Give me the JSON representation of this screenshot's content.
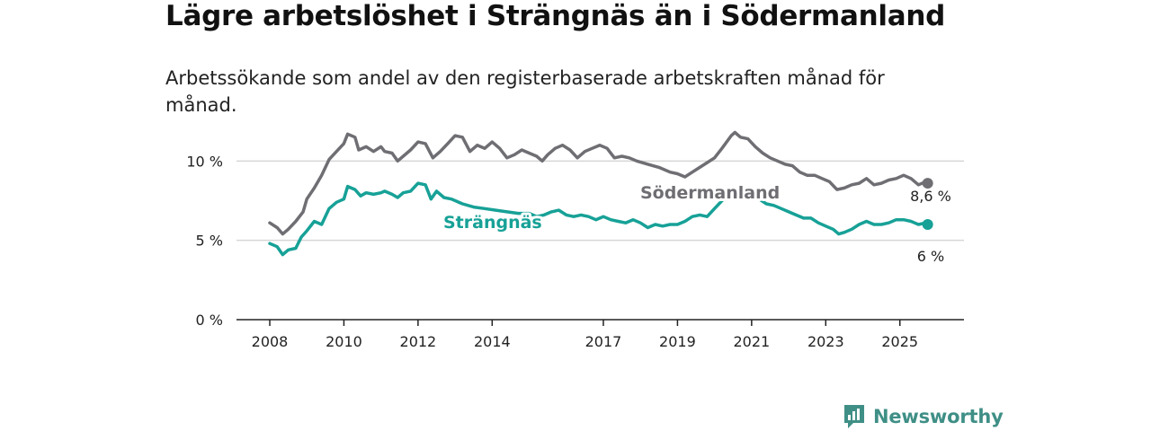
{
  "header": {
    "title": "Lägre arbetslöshet i Strängnäs än i Södermanland",
    "subtitle": "Arbetssökande som andel av den registerbaserade arbetskraften månad för månad."
  },
  "brand": {
    "name": "Newsworthy",
    "icon": "newsworthy-logo-icon",
    "color": "#3f8f86"
  },
  "chart_data": {
    "type": "line",
    "title": "Lägre arbetslöshet i Strängnäs än i Södermanland",
    "subtitle": "Arbetssökande som andel av den registerbaserade arbetskraften månad för månad.",
    "xlabel": "",
    "ylabel": "",
    "xlim": [
      2008,
      2026
    ],
    "ylim": [
      0,
      12
    ],
    "grid": true,
    "x_ticks": [
      {
        "value": 2008,
        "label": "2008"
      },
      {
        "value": 2010,
        "label": "2010"
      },
      {
        "value": 2012,
        "label": "2012"
      },
      {
        "value": 2014,
        "label": "2014"
      },
      {
        "value": 2017,
        "label": "2017"
      },
      {
        "value": 2019,
        "label": "2019"
      },
      {
        "value": 2021,
        "label": "2021"
      },
      {
        "value": 2023,
        "label": "2023"
      },
      {
        "value": 2025,
        "label": "2025"
      }
    ],
    "y_ticks": [
      {
        "value": 0,
        "label": "0 %"
      },
      {
        "value": 5,
        "label": "5 %"
      },
      {
        "value": 10,
        "label": "10 %"
      }
    ],
    "series": [
      {
        "name": "Södermanland",
        "color": "#6f6e73",
        "end_label": "8,6 %",
        "points": [
          [
            2008.0,
            6.1
          ],
          [
            2008.2,
            5.8
          ],
          [
            2008.35,
            5.4
          ],
          [
            2008.5,
            5.7
          ],
          [
            2008.7,
            6.2
          ],
          [
            2008.9,
            6.8
          ],
          [
            2009.0,
            7.6
          ],
          [
            2009.2,
            8.3
          ],
          [
            2009.4,
            9.1
          ],
          [
            2009.6,
            10.1
          ],
          [
            2009.8,
            10.6
          ],
          [
            2010.0,
            11.1
          ],
          [
            2010.1,
            11.7
          ],
          [
            2010.3,
            11.5
          ],
          [
            2010.4,
            10.7
          ],
          [
            2010.6,
            10.9
          ],
          [
            2010.8,
            10.6
          ],
          [
            2011.0,
            10.9
          ],
          [
            2011.1,
            10.6
          ],
          [
            2011.3,
            10.5
          ],
          [
            2011.45,
            10.0
          ],
          [
            2011.6,
            10.3
          ],
          [
            2011.8,
            10.7
          ],
          [
            2012.0,
            11.2
          ],
          [
            2012.2,
            11.1
          ],
          [
            2012.4,
            10.2
          ],
          [
            2012.6,
            10.6
          ],
          [
            2012.8,
            11.1
          ],
          [
            2013.0,
            11.6
          ],
          [
            2013.2,
            11.5
          ],
          [
            2013.4,
            10.6
          ],
          [
            2013.6,
            11.0
          ],
          [
            2013.8,
            10.8
          ],
          [
            2014.0,
            11.2
          ],
          [
            2014.2,
            10.8
          ],
          [
            2014.4,
            10.2
          ],
          [
            2014.6,
            10.4
          ],
          [
            2014.8,
            10.7
          ],
          [
            2015.0,
            10.5
          ],
          [
            2015.2,
            10.3
          ],
          [
            2015.35,
            10.0
          ],
          [
            2015.5,
            10.4
          ],
          [
            2015.7,
            10.8
          ],
          [
            2015.9,
            11.0
          ],
          [
            2016.1,
            10.7
          ],
          [
            2016.3,
            10.2
          ],
          [
            2016.5,
            10.6
          ],
          [
            2016.7,
            10.8
          ],
          [
            2016.9,
            11.0
          ],
          [
            2017.1,
            10.8
          ],
          [
            2017.3,
            10.2
          ],
          [
            2017.5,
            10.3
          ],
          [
            2017.7,
            10.2
          ],
          [
            2017.9,
            10.0
          ],
          [
            2018.2,
            9.8
          ],
          [
            2018.5,
            9.6
          ],
          [
            2018.8,
            9.3
          ],
          [
            2019.0,
            9.2
          ],
          [
            2019.2,
            9.0
          ],
          [
            2019.4,
            9.3
          ],
          [
            2019.6,
            9.6
          ],
          [
            2019.8,
            9.9
          ],
          [
            2020.0,
            10.2
          ],
          [
            2020.2,
            10.8
          ],
          [
            2020.45,
            11.6
          ],
          [
            2020.55,
            11.8
          ],
          [
            2020.7,
            11.5
          ],
          [
            2020.9,
            11.4
          ],
          [
            2021.1,
            10.9
          ],
          [
            2021.3,
            10.5
          ],
          [
            2021.5,
            10.2
          ],
          [
            2021.7,
            10.0
          ],
          [
            2021.9,
            9.8
          ],
          [
            2022.1,
            9.7
          ],
          [
            2022.3,
            9.3
          ],
          [
            2022.5,
            9.1
          ],
          [
            2022.7,
            9.1
          ],
          [
            2022.9,
            8.9
          ],
          [
            2023.1,
            8.7
          ],
          [
            2023.3,
            8.2
          ],
          [
            2023.5,
            8.3
          ],
          [
            2023.7,
            8.5
          ],
          [
            2023.9,
            8.6
          ],
          [
            2024.1,
            8.9
          ],
          [
            2024.3,
            8.5
          ],
          [
            2024.5,
            8.6
          ],
          [
            2024.7,
            8.8
          ],
          [
            2024.9,
            8.9
          ],
          [
            2025.1,
            9.1
          ],
          [
            2025.3,
            8.9
          ],
          [
            2025.5,
            8.5
          ],
          [
            2025.7,
            8.7
          ],
          [
            2025.75,
            8.6
          ]
        ]
      },
      {
        "name": "Strängnäs",
        "color": "#17a197",
        "end_label": "6 %",
        "points": [
          [
            2008.0,
            4.8
          ],
          [
            2008.2,
            4.6
          ],
          [
            2008.35,
            4.1
          ],
          [
            2008.5,
            4.4
          ],
          [
            2008.7,
            4.5
          ],
          [
            2008.85,
            5.2
          ],
          [
            2009.0,
            5.6
          ],
          [
            2009.2,
            6.2
          ],
          [
            2009.4,
            6.0
          ],
          [
            2009.6,
            7.0
          ],
          [
            2009.8,
            7.4
          ],
          [
            2010.0,
            7.6
          ],
          [
            2010.1,
            8.4
          ],
          [
            2010.3,
            8.2
          ],
          [
            2010.45,
            7.8
          ],
          [
            2010.6,
            8.0
          ],
          [
            2010.8,
            7.9
          ],
          [
            2011.0,
            8.0
          ],
          [
            2011.1,
            8.1
          ],
          [
            2011.3,
            7.9
          ],
          [
            2011.45,
            7.7
          ],
          [
            2011.6,
            8.0
          ],
          [
            2011.8,
            8.1
          ],
          [
            2012.0,
            8.6
          ],
          [
            2012.2,
            8.5
          ],
          [
            2012.35,
            7.6
          ],
          [
            2012.5,
            8.1
          ],
          [
            2012.7,
            7.7
          ],
          [
            2012.9,
            7.6
          ],
          [
            2013.2,
            7.3
          ],
          [
            2013.5,
            7.1
          ],
          [
            2013.8,
            7.0
          ],
          [
            2014.1,
            6.9
          ],
          [
            2014.4,
            6.8
          ],
          [
            2014.7,
            6.7
          ],
          [
            2015.0,
            6.7
          ],
          [
            2015.2,
            6.5
          ],
          [
            2015.4,
            6.6
          ],
          [
            2015.6,
            6.8
          ],
          [
            2015.8,
            6.9
          ],
          [
            2016.0,
            6.6
          ],
          [
            2016.2,
            6.5
          ],
          [
            2016.4,
            6.6
          ],
          [
            2016.6,
            6.5
          ],
          [
            2016.8,
            6.3
          ],
          [
            2017.0,
            6.5
          ],
          [
            2017.2,
            6.3
          ],
          [
            2017.4,
            6.2
          ],
          [
            2017.6,
            6.1
          ],
          [
            2017.8,
            6.3
          ],
          [
            2018.0,
            6.1
          ],
          [
            2018.2,
            5.8
          ],
          [
            2018.4,
            6.0
          ],
          [
            2018.6,
            5.9
          ],
          [
            2018.8,
            6.0
          ],
          [
            2019.0,
            6.0
          ],
          [
            2019.2,
            6.2
          ],
          [
            2019.4,
            6.5
          ],
          [
            2019.6,
            6.6
          ],
          [
            2019.8,
            6.5
          ],
          [
            2020.0,
            7.0
          ],
          [
            2020.2,
            7.5
          ],
          [
            2020.4,
            8.0
          ],
          [
            2020.6,
            8.1
          ],
          [
            2020.8,
            7.9
          ],
          [
            2021.0,
            8.0
          ],
          [
            2021.2,
            7.6
          ],
          [
            2021.4,
            7.3
          ],
          [
            2021.6,
            7.2
          ],
          [
            2021.8,
            7.0
          ],
          [
            2022.0,
            6.8
          ],
          [
            2022.2,
            6.6
          ],
          [
            2022.4,
            6.4
          ],
          [
            2022.6,
            6.4
          ],
          [
            2022.8,
            6.1
          ],
          [
            2023.0,
            5.9
          ],
          [
            2023.2,
            5.7
          ],
          [
            2023.35,
            5.4
          ],
          [
            2023.5,
            5.5
          ],
          [
            2023.7,
            5.7
          ],
          [
            2023.9,
            6.0
          ],
          [
            2024.1,
            6.2
          ],
          [
            2024.3,
            6.0
          ],
          [
            2024.5,
            6.0
          ],
          [
            2024.7,
            6.1
          ],
          [
            2024.9,
            6.3
          ],
          [
            2025.1,
            6.3
          ],
          [
            2025.3,
            6.2
          ],
          [
            2025.5,
            6.0
          ],
          [
            2025.7,
            6.1
          ],
          [
            2025.75,
            6.0
          ]
        ]
      }
    ]
  }
}
